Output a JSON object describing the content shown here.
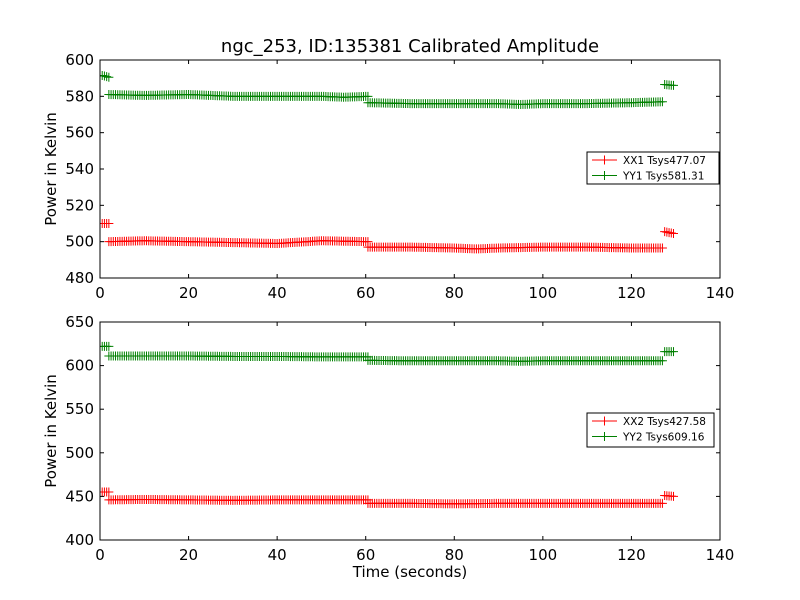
{
  "chart_data": [
    {
      "type": "line",
      "title": "ngc_253, ID:135381 Calibrated Amplitude",
      "xlabel": "",
      "ylabel": "Power in Kelvin",
      "xlim": [
        0,
        140
      ],
      "ylim": [
        480,
        600
      ],
      "xticks": [
        0,
        20,
        40,
        60,
        80,
        100,
        120,
        140
      ],
      "yticks": [
        480,
        500,
        520,
        540,
        560,
        580,
        600
      ],
      "legend_position": "center-right",
      "grid": false,
      "series": [
        {
          "name": "XX1 Tsys477.07",
          "color": "#ff0000",
          "marker": "plus",
          "segments": [
            {
              "x": [
                0.5,
                2.0
              ],
              "y": [
                510,
                510
              ]
            },
            {
              "x": [
                2.0,
                10,
                20,
                30,
                40,
                50,
                60.5
              ],
              "y": [
                500,
                500.5,
                500,
                499.5,
                499,
                500.5,
                500
              ]
            },
            {
              "x": [
                60.5,
                70,
                80,
                85,
                90,
                100,
                110,
                120,
                127
              ],
              "y": [
                497,
                497,
                496.5,
                496,
                496.5,
                497,
                497,
                496.5,
                496.5
              ]
            },
            {
              "x": [
                127.5,
                129.5
              ],
              "y": [
                505.5,
                504.5
              ]
            }
          ]
        },
        {
          "name": "YY1 Tsys581.31",
          "color": "#008000",
          "marker": "plus",
          "segments": [
            {
              "x": [
                0.5,
                2.0
              ],
              "y": [
                591.5,
                590.5
              ]
            },
            {
              "x": [
                2.0,
                10,
                20,
                30,
                40,
                50,
                55,
                60.5
              ],
              "y": [
                581,
                580.5,
                581,
                580,
                580,
                580,
                579.5,
                580
              ]
            },
            {
              "x": [
                60.5,
                70,
                80,
                90,
                95,
                100,
                110,
                120,
                127
              ],
              "y": [
                576.5,
                576,
                576,
                576,
                575.5,
                576,
                576,
                576.5,
                577
              ]
            },
            {
              "x": [
                127.5,
                129.5
              ],
              "y": [
                586.5,
                586
              ]
            }
          ]
        }
      ]
    },
    {
      "type": "line",
      "title": "",
      "xlabel": "Time (seconds)",
      "ylabel": "Power in Kelvin",
      "xlim": [
        0,
        140
      ],
      "ylim": [
        400,
        650
      ],
      "xticks": [
        0,
        20,
        40,
        60,
        80,
        100,
        120,
        140
      ],
      "yticks": [
        400,
        450,
        500,
        550,
        600,
        650
      ],
      "legend_position": "center-right",
      "grid": false,
      "series": [
        {
          "name": "XX2 Tsys427.58",
          "color": "#ff0000",
          "marker": "plus",
          "segments": [
            {
              "x": [
                0.5,
                2.0
              ],
              "y": [
                455,
                455
              ]
            },
            {
              "x": [
                2.0,
                10,
                20,
                30,
                40,
                50,
                60.5
              ],
              "y": [
                446,
                446.5,
                446,
                445.5,
                446,
                446,
                446
              ]
            },
            {
              "x": [
                60.5,
                70,
                80,
                90,
                100,
                110,
                120,
                127
              ],
              "y": [
                442,
                442,
                441.5,
                442,
                442,
                442,
                442,
                442
              ]
            },
            {
              "x": [
                127.5,
                129.5
              ],
              "y": [
                451,
                450
              ]
            }
          ]
        },
        {
          "name": "YY2 Tsys609.16",
          "color": "#008000",
          "marker": "plus",
          "segments": [
            {
              "x": [
                0.5,
                2.0
              ],
              "y": [
                622,
                622
              ]
            },
            {
              "x": [
                2.0,
                10,
                20,
                30,
                40,
                50,
                60.5
              ],
              "y": [
                611,
                611,
                611,
                610.5,
                610.5,
                610,
                610
              ]
            },
            {
              "x": [
                60.5,
                70,
                80,
                90,
                95,
                100,
                110,
                120,
                127
              ],
              "y": [
                606,
                605.5,
                605.5,
                605.5,
                605,
                605.5,
                605.5,
                605.5,
                605.5
              ]
            },
            {
              "x": [
                127.5,
                129.5
              ],
              "y": [
                616,
                616
              ]
            }
          ]
        }
      ]
    }
  ]
}
